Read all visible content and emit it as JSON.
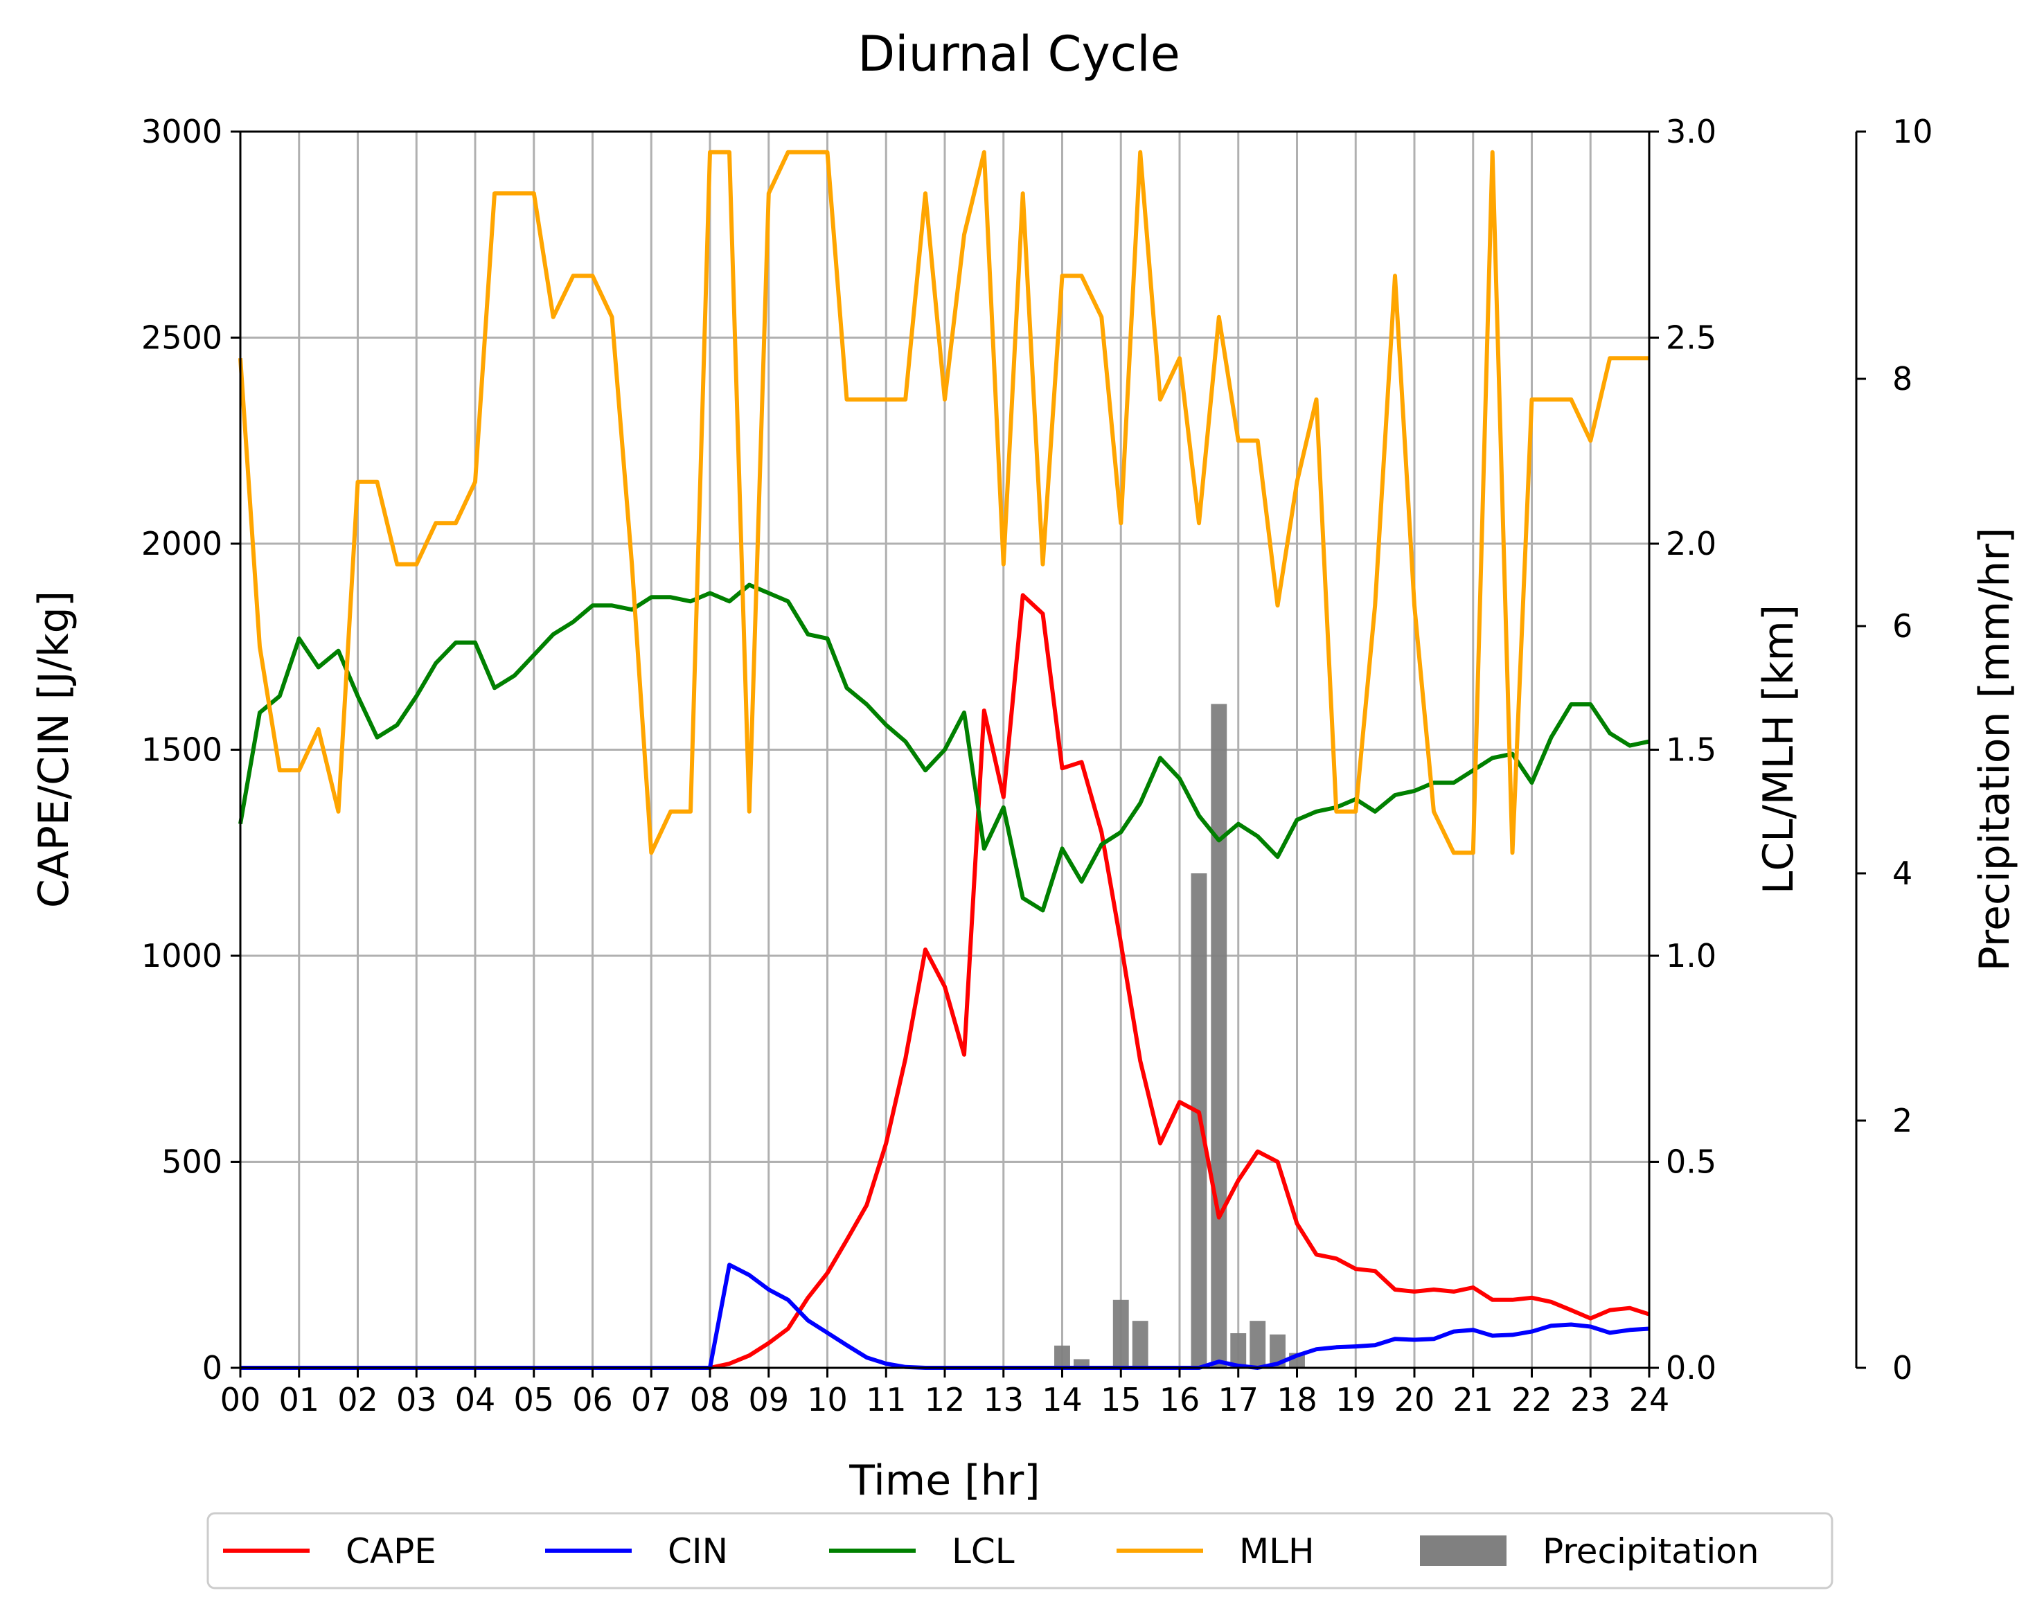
{
  "chart_data": {
    "type": "line",
    "title": "Diurnal Cycle",
    "xlabel": "Time [hr]",
    "ylabel_left": "CAPE/CIN [J/kg]",
    "ylabel_right": "LCL/MLH [km]",
    "ylabel_precip": "Precipitation [mm/hr]",
    "xlim": [
      0,
      24
    ],
    "ylim_left": [
      0,
      3000
    ],
    "ylim_right": [
      0,
      3.0
    ],
    "ylim_precip": [
      0,
      10
    ],
    "x_ticks": [
      "00",
      "01",
      "02",
      "03",
      "04",
      "05",
      "06",
      "07",
      "08",
      "09",
      "10",
      "11",
      "12",
      "13",
      "14",
      "15",
      "16",
      "17",
      "18",
      "19",
      "20",
      "21",
      "22",
      "23",
      "24"
    ],
    "y_ticks_left": [
      "0",
      "500",
      "1000",
      "1500",
      "2000",
      "2500",
      "3000"
    ],
    "y_ticks_right": [
      "0.0",
      "0.5",
      "1.0",
      "1.5",
      "2.0",
      "2.5",
      "3.0"
    ],
    "y_ticks_precip": [
      "0",
      "2",
      "4",
      "6",
      "8",
      "10"
    ],
    "grid": true,
    "legend_position": "below",
    "legend": [
      "CAPE",
      "CIN",
      "LCL",
      "MLH",
      "Precipitation"
    ],
    "series": [
      {
        "name": "CAPE",
        "axis": "left",
        "color": "#ff0000",
        "points": [
          [
            0,
            0
          ],
          [
            8,
            0
          ],
          [
            8.33,
            10
          ],
          [
            8.67,
            30
          ],
          [
            9,
            60
          ],
          [
            9.33,
            95
          ],
          [
            9.67,
            170
          ],
          [
            10,
            230
          ],
          [
            10.33,
            310
          ],
          [
            10.67,
            395
          ],
          [
            11,
            545
          ],
          [
            11.33,
            750
          ],
          [
            11.67,
            1015
          ],
          [
            12,
            925
          ],
          [
            12.33,
            760
          ],
          [
            12.67,
            1595
          ],
          [
            13,
            1385
          ],
          [
            13.33,
            1875
          ],
          [
            13.67,
            1830
          ],
          [
            14,
            1455
          ],
          [
            14.33,
            1470
          ],
          [
            14.67,
            1300
          ],
          [
            15,
            1030
          ],
          [
            15.33,
            745
          ],
          [
            15.67,
            545
          ],
          [
            16,
            645
          ],
          [
            16.33,
            620
          ],
          [
            16.67,
            365
          ],
          [
            17,
            455
          ],
          [
            17.33,
            525
          ],
          [
            17.67,
            500
          ],
          [
            18,
            350
          ],
          [
            18.33,
            275
          ],
          [
            18.67,
            265
          ],
          [
            19,
            240
          ],
          [
            19.33,
            235
          ],
          [
            19.67,
            190
          ],
          [
            20,
            185
          ],
          [
            20.33,
            190
          ],
          [
            20.67,
            185
          ],
          [
            21,
            195
          ],
          [
            21.33,
            165
          ],
          [
            21.67,
            165
          ],
          [
            22,
            170
          ],
          [
            22.33,
            160
          ],
          [
            22.67,
            140
          ],
          [
            23,
            120
          ],
          [
            23.33,
            140
          ],
          [
            23.67,
            145
          ],
          [
            24,
            130
          ]
        ]
      },
      {
        "name": "CIN",
        "axis": "left",
        "color": "#0000ff",
        "points": [
          [
            0,
            0
          ],
          [
            8,
            0
          ],
          [
            8.33,
            250
          ],
          [
            8.67,
            225
          ],
          [
            9,
            190
          ],
          [
            9.33,
            165
          ],
          [
            9.67,
            115
          ],
          [
            10,
            85
          ],
          [
            10.33,
            55
          ],
          [
            10.67,
            25
          ],
          [
            11,
            10
          ],
          [
            11.33,
            2
          ],
          [
            11.67,
            0
          ],
          [
            16.33,
            0
          ],
          [
            16.67,
            15
          ],
          [
            17,
            5
          ],
          [
            17.33,
            0
          ],
          [
            17.67,
            10
          ],
          [
            18,
            30
          ],
          [
            18.33,
            45
          ],
          [
            18.67,
            50
          ],
          [
            19,
            52
          ],
          [
            19.33,
            55
          ],
          [
            19.67,
            70
          ],
          [
            20,
            68
          ],
          [
            20.33,
            70
          ],
          [
            20.67,
            88
          ],
          [
            21,
            92
          ],
          [
            21.33,
            78
          ],
          [
            21.67,
            80
          ],
          [
            22,
            88
          ],
          [
            22.33,
            102
          ],
          [
            22.67,
            105
          ],
          [
            23,
            100
          ],
          [
            23.33,
            85
          ],
          [
            23.67,
            92
          ],
          [
            24,
            95
          ]
        ]
      },
      {
        "name": "LCL",
        "axis": "right",
        "color": "#008000",
        "points": [
          [
            0,
            1.32
          ],
          [
            0.33,
            1.59
          ],
          [
            0.67,
            1.63
          ],
          [
            1,
            1.77
          ],
          [
            1.33,
            1.7
          ],
          [
            1.67,
            1.74
          ],
          [
            2,
            1.63
          ],
          [
            2.33,
            1.53
          ],
          [
            2.67,
            1.56
          ],
          [
            3,
            1.63
          ],
          [
            3.33,
            1.71
          ],
          [
            3.67,
            1.76
          ],
          [
            4,
            1.76
          ],
          [
            4.33,
            1.65
          ],
          [
            4.67,
            1.68
          ],
          [
            5,
            1.73
          ],
          [
            5.33,
            1.78
          ],
          [
            5.67,
            1.81
          ],
          [
            6,
            1.85
          ],
          [
            6.33,
            1.85
          ],
          [
            6.67,
            1.84
          ],
          [
            7,
            1.87
          ],
          [
            7.33,
            1.87
          ],
          [
            7.67,
            1.86
          ],
          [
            8,
            1.88
          ],
          [
            8.33,
            1.86
          ],
          [
            8.67,
            1.9
          ],
          [
            9,
            1.88
          ],
          [
            9.33,
            1.86
          ],
          [
            9.67,
            1.78
          ],
          [
            10,
            1.77
          ],
          [
            10.33,
            1.65
          ],
          [
            10.67,
            1.61
          ],
          [
            11,
            1.56
          ],
          [
            11.33,
            1.52
          ],
          [
            11.67,
            1.45
          ],
          [
            12,
            1.5
          ],
          [
            12.33,
            1.59
          ],
          [
            12.67,
            1.26
          ],
          [
            13,
            1.36
          ],
          [
            13.33,
            1.14
          ],
          [
            13.67,
            1.11
          ],
          [
            14,
            1.26
          ],
          [
            14.33,
            1.18
          ],
          [
            14.67,
            1.27
          ],
          [
            15,
            1.3
          ],
          [
            15.33,
            1.37
          ],
          [
            15.67,
            1.48
          ],
          [
            16,
            1.43
          ],
          [
            16.33,
            1.34
          ],
          [
            16.67,
            1.28
          ],
          [
            17,
            1.32
          ],
          [
            17.33,
            1.29
          ],
          [
            17.67,
            1.24
          ],
          [
            18,
            1.33
          ],
          [
            18.33,
            1.35
          ],
          [
            18.67,
            1.36
          ],
          [
            19,
            1.38
          ],
          [
            19.33,
            1.35
          ],
          [
            19.67,
            1.39
          ],
          [
            20,
            1.4
          ],
          [
            20.33,
            1.42
          ],
          [
            20.67,
            1.42
          ],
          [
            21,
            1.45
          ],
          [
            21.33,
            1.48
          ],
          [
            21.67,
            1.49
          ],
          [
            22,
            1.42
          ],
          [
            22.33,
            1.53
          ],
          [
            22.67,
            1.61
          ],
          [
            23,
            1.61
          ],
          [
            23.33,
            1.54
          ],
          [
            23.67,
            1.51
          ],
          [
            24,
            1.52
          ]
        ]
      },
      {
        "name": "MLH",
        "axis": "right",
        "color": "#ffa500",
        "points": [
          [
            0,
            2.45
          ],
          [
            0.33,
            1.75
          ],
          [
            0.67,
            1.45
          ],
          [
            1,
            1.45
          ],
          [
            1.33,
            1.55
          ],
          [
            1.67,
            1.35
          ],
          [
            2,
            2.15
          ],
          [
            2.33,
            2.15
          ],
          [
            2.67,
            1.95
          ],
          [
            3,
            1.95
          ],
          [
            3.33,
            2.05
          ],
          [
            3.67,
            2.05
          ],
          [
            4,
            2.15
          ],
          [
            4.33,
            2.85
          ],
          [
            4.67,
            2.85
          ],
          [
            5,
            2.85
          ],
          [
            5.33,
            2.55
          ],
          [
            5.67,
            2.65
          ],
          [
            6,
            2.65
          ],
          [
            6.33,
            2.55
          ],
          [
            6.67,
            1.95
          ],
          [
            7,
            1.25
          ],
          [
            7.33,
            1.35
          ],
          [
            7.67,
            1.35
          ],
          [
            8,
            2.95
          ],
          [
            8.33,
            2.95
          ],
          [
            8.67,
            1.35
          ],
          [
            9,
            2.85
          ],
          [
            9.33,
            2.95
          ],
          [
            9.67,
            2.95
          ],
          [
            10,
            2.95
          ],
          [
            10.33,
            2.35
          ],
          [
            10.67,
            2.35
          ],
          [
            11,
            2.35
          ],
          [
            11.33,
            2.35
          ],
          [
            11.67,
            2.85
          ],
          [
            12,
            2.35
          ],
          [
            12.33,
            2.75
          ],
          [
            12.67,
            2.95
          ],
          [
            13,
            1.95
          ],
          [
            13.33,
            2.85
          ],
          [
            13.67,
            1.95
          ],
          [
            14,
            2.65
          ],
          [
            14.33,
            2.65
          ],
          [
            14.67,
            2.55
          ],
          [
            15,
            2.05
          ],
          [
            15.33,
            2.95
          ],
          [
            15.67,
            2.35
          ],
          [
            16,
            2.45
          ],
          [
            16.33,
            2.05
          ],
          [
            16.67,
            2.55
          ],
          [
            17,
            2.25
          ],
          [
            17.33,
            2.25
          ],
          [
            17.67,
            1.85
          ],
          [
            18,
            2.15
          ],
          [
            18.33,
            2.35
          ],
          [
            18.67,
            1.35
          ],
          [
            19,
            1.35
          ],
          [
            19.33,
            1.85
          ],
          [
            19.67,
            2.65
          ],
          [
            20,
            1.85
          ],
          [
            20.33,
            1.35
          ],
          [
            20.67,
            1.25
          ],
          [
            21,
            1.25
          ],
          [
            21.33,
            2.95
          ],
          [
            21.67,
            1.25
          ],
          [
            22,
            2.35
          ],
          [
            22.33,
            2.35
          ],
          [
            22.67,
            2.35
          ],
          [
            23,
            2.25
          ],
          [
            23.33,
            2.45
          ],
          [
            23.67,
            2.45
          ],
          [
            24,
            2.45
          ]
        ]
      }
    ],
    "precipitation": {
      "name": "Precipitation",
      "axis": "precip",
      "color": "#808080",
      "bar_width_hr": 0.27,
      "bars": [
        [
          14,
          0.18
        ],
        [
          14.33,
          0.07
        ],
        [
          15,
          0.55
        ],
        [
          15.33,
          0.38
        ],
        [
          16.33,
          4.0
        ],
        [
          16.67,
          5.37
        ],
        [
          17,
          0.28
        ],
        [
          17.33,
          0.38
        ],
        [
          17.67,
          0.27
        ],
        [
          18,
          0.12
        ]
      ]
    }
  }
}
